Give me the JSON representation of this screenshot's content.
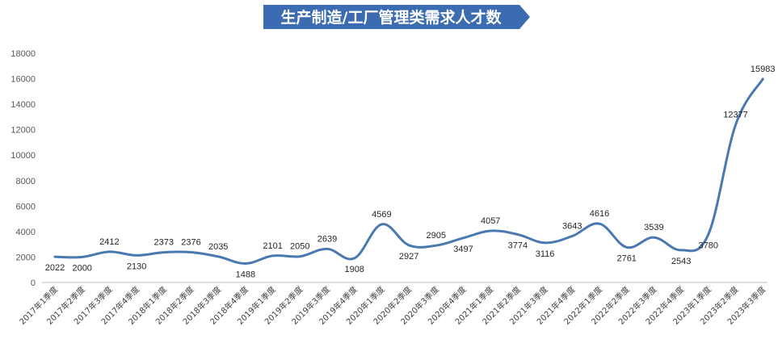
{
  "chart_data": {
    "type": "line",
    "title": "生产制造/工厂管理类需求人才数",
    "categories": [
      "2017年1季度",
      "2017年2季度",
      "2017年3季度",
      "2017年4季度",
      "2018年1季度",
      "2018年2季度",
      "2018年3季度",
      "2018年4季度",
      "2019年1季度",
      "2019年2季度",
      "2019年3季度",
      "2019年4季度",
      "2020年1季度",
      "2020年2季度",
      "2020年3季度",
      "2020年4季度",
      "2021年1季度",
      "2021年2季度",
      "2021年3季度",
      "2021年4季度",
      "2022年1季度",
      "2022年2季度",
      "2022年3季度",
      "2022年4季度",
      "2023年1季度",
      "2023年2季度",
      "2023年3季度"
    ],
    "values": [
      2022,
      2000,
      2412,
      2130,
      2373,
      2376,
      2035,
      1488,
      2101,
      2050,
      2639,
      1908,
      4569,
      2927,
      2905,
      3497,
      4057,
      3774,
      3116,
      3643,
      4616,
      2761,
      3539,
      2543,
      3780,
      12377,
      15983
    ],
    "label_positions": [
      "below",
      "below",
      "above",
      "below",
      "above",
      "above",
      "above",
      "below",
      "above",
      "above",
      "above",
      "below",
      "above",
      "below",
      "above",
      "below",
      "above",
      "below",
      "below",
      "above",
      "above",
      "below",
      "above",
      "below",
      "below",
      "above",
      "above"
    ],
    "ylim": [
      0,
      18000
    ],
    "yticks": [
      0,
      2000,
      4000,
      6000,
      8000,
      10000,
      12000,
      14000,
      16000,
      18000
    ],
    "grid": false,
    "legend": "none",
    "colors": {
      "line": "#4a78b0",
      "title_bg": "#3b6cb1",
      "title_text": "#ffffff",
      "axis": "#bfbfbf"
    }
  }
}
